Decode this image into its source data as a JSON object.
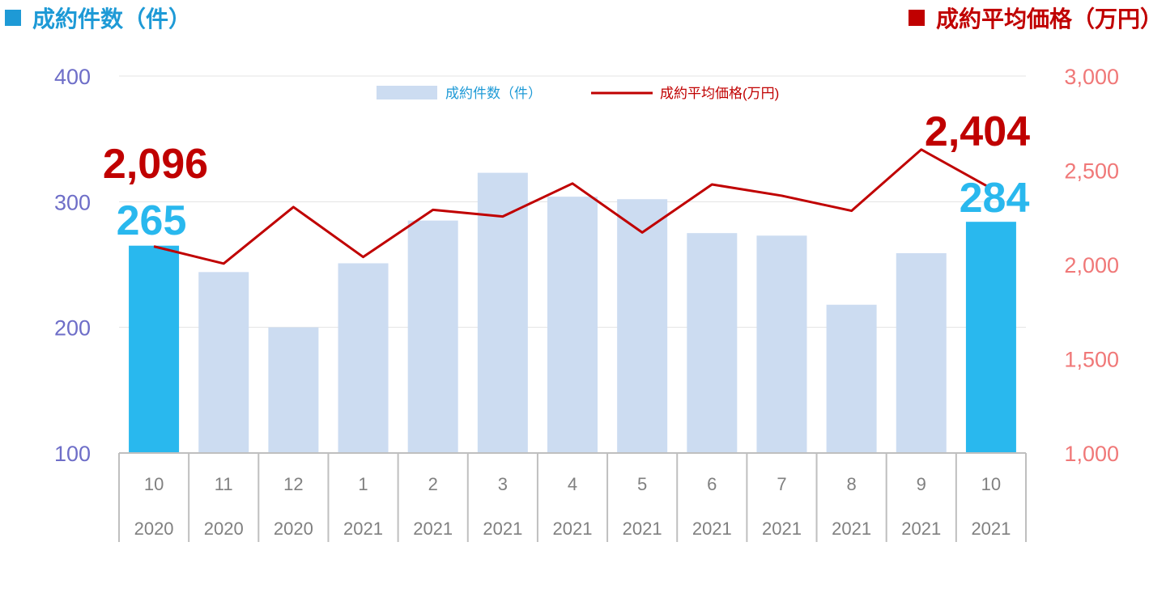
{
  "colors": {
    "left_title": "#1e9ad6",
    "right_title": "#c00000",
    "left_axis": "#6e6ec8",
    "right_axis": "#f07878",
    "bar": "#ccdcf1",
    "bar_highlight": "#29b8ee",
    "line": "#c00000",
    "legend_bar_text": "#1e9ad6",
    "legend_line_text": "#c00000",
    "grid": "#e3e3e3",
    "table_border": "#bfbfbf"
  },
  "header": {
    "left_title": "成約件数（件）",
    "right_title": "成約平均価格（万円）"
  },
  "chart_data": {
    "type": "bar",
    "categories": [
      "10",
      "11",
      "12",
      "1",
      "2",
      "3",
      "4",
      "5",
      "6",
      "7",
      "8",
      "9",
      "10"
    ],
    "years": [
      "2020",
      "2020",
      "2020",
      "2021",
      "2021",
      "2021",
      "2021",
      "2021",
      "2021",
      "2021",
      "2021",
      "2021",
      "2021"
    ],
    "series": [
      {
        "name": "成約件数（件）",
        "type": "bar",
        "axis": "left",
        "values": [
          265,
          244,
          200,
          251,
          285,
          323,
          304,
          302,
          275,
          273,
          218,
          259,
          284
        ],
        "highlight": [
          0,
          12
        ]
      },
      {
        "name": "成約平均価格(万円)",
        "type": "line",
        "axis": "right",
        "values": [
          2096,
          2005,
          2305,
          2040,
          2290,
          2255,
          2430,
          2170,
          2425,
          2365,
          2285,
          2610,
          2404
        ]
      }
    ],
    "y_left": {
      "ylim": [
        100,
        400
      ],
      "ticks": [
        "100",
        "200",
        "300",
        "400"
      ]
    },
    "y_right": {
      "ylim": [
        1000,
        3000
      ],
      "ticks": [
        "1,000",
        "1,500",
        "2,000",
        "2,500",
        "3,000"
      ]
    },
    "grid": true,
    "legend": "top-center",
    "annotations": {
      "first_price": "2,096",
      "first_count": "265",
      "last_price": "2,404",
      "last_count": "284"
    }
  }
}
